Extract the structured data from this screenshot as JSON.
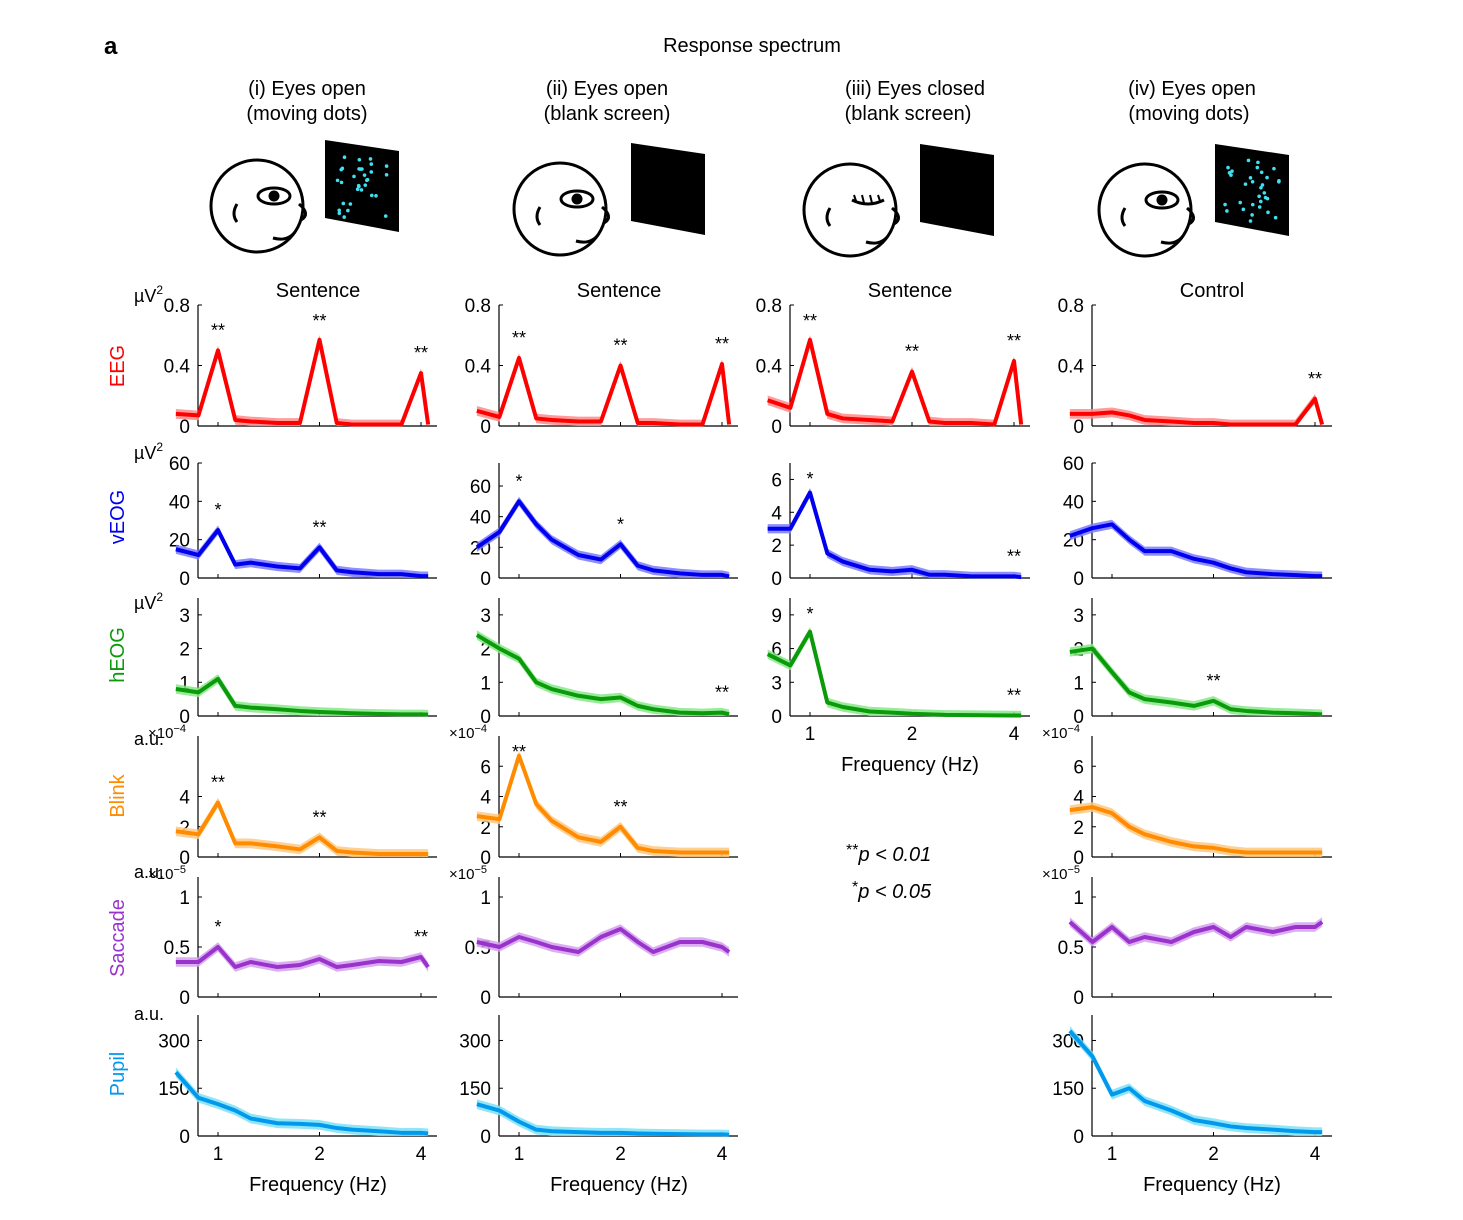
{
  "panel_label": "a",
  "title": "Response spectrum",
  "conditions": [
    {
      "line1": "(i) Eyes open",
      "line2": "(moving dots)",
      "display": "dots",
      "eyes": "open"
    },
    {
      "line1": "(ii) Eyes open",
      "line2": "(blank screen)",
      "display": "blank",
      "eyes": "open"
    },
    {
      "line1": "(iii) Eyes closed",
      "line2": "(blank screen)",
      "display": "blank",
      "eyes": "closed"
    },
    {
      "line1": "(iv) Eyes open",
      "line2": "(moving dots)",
      "display": "dots",
      "eyes": "open"
    }
  ],
  "column_titles": [
    "Sentence",
    "Sentence",
    "Sentence",
    "Control"
  ],
  "row_labels": [
    {
      "name": "EEG",
      "color": "#ff0000"
    },
    {
      "name": "vEOG",
      "color": "#0000ee"
    },
    {
      "name": "hEOG",
      "color": "#0a9a0a"
    },
    {
      "name": "Blink",
      "color": "#ff8c00"
    },
    {
      "name": "Saccade",
      "color": "#9933cc"
    },
    {
      "name": "Pupil",
      "color": "#0099ee"
    }
  ],
  "unit_labels": {
    "uv2": "µV",
    "sq": "2",
    "au": "a.u."
  },
  "xlabel": "Frequency (Hz)",
  "legend": {
    "line1_stars": "**",
    "line1_text": "p < 0.01",
    "line2_stars": "*",
    "line2_text": "p < 0.05"
  },
  "colors": {
    "EEG": {
      "line": "#ff0000",
      "band": "#ff8a8a"
    },
    "vEOG": {
      "line": "#0000ee",
      "band": "#7a7aff"
    },
    "hEOG": {
      "line": "#0a9a0a",
      "band": "#86e886"
    },
    "Blink": {
      "line": "#ff8c00",
      "band": "#ffc880"
    },
    "Saccade": {
      "line": "#9933cc",
      "band": "#d4a0ee"
    },
    "Pupil": {
      "line": "#0099ee",
      "band": "#7ce0f4"
    },
    "dots": "#40e0f0"
  },
  "chart_data": [
    {
      "type": "line",
      "row": "EEG",
      "col": 0,
      "ylim": [
        0,
        0.8
      ],
      "yticks": [
        "0",
        "0.4",
        "0.8"
      ],
      "unit": "uv2",
      "xticks": [
        1,
        2,
        4
      ],
      "x": [
        0.75,
        0.875,
        1,
        1.125,
        1.25,
        1.5,
        1.75,
        2,
        2.25,
        2.5,
        3,
        3.5,
        4,
        4.2
      ],
      "y": [
        0.08,
        0.07,
        0.5,
        0.04,
        0.03,
        0.02,
        0.02,
        0.57,
        0.02,
        0.01,
        0.01,
        0.01,
        0.35,
        0.01
      ],
      "stars": [
        {
          "x": 1,
          "s": "**"
        },
        {
          "x": 2,
          "s": "**"
        },
        {
          "x": 4,
          "s": "**"
        }
      ]
    },
    {
      "type": "line",
      "row": "EEG",
      "col": 1,
      "ylim": [
        0,
        0.8
      ],
      "yticks": [
        "0",
        "0.4",
        "0.8"
      ],
      "xticks": [
        1,
        2,
        4
      ],
      "x": [
        0.75,
        0.875,
        1,
        1.125,
        1.25,
        1.5,
        1.75,
        2,
        2.25,
        2.5,
        3,
        3.5,
        4,
        4.2
      ],
      "y": [
        0.1,
        0.06,
        0.45,
        0.05,
        0.04,
        0.03,
        0.03,
        0.4,
        0.02,
        0.02,
        0.01,
        0.01,
        0.41,
        0.01
      ],
      "stars": [
        {
          "x": 1,
          "s": "**"
        },
        {
          "x": 2,
          "s": "**"
        },
        {
          "x": 4,
          "s": "**"
        }
      ]
    },
    {
      "type": "line",
      "row": "EEG",
      "col": 2,
      "ylim": [
        0,
        0.8
      ],
      "yticks": [
        "0",
        "0.4",
        "0.8"
      ],
      "xticks": [
        1,
        2,
        4
      ],
      "x": [
        0.75,
        0.875,
        1,
        1.125,
        1.25,
        1.5,
        1.75,
        2,
        2.25,
        2.5,
        3,
        3.5,
        4,
        4.2
      ],
      "y": [
        0.17,
        0.12,
        0.57,
        0.08,
        0.05,
        0.04,
        0.03,
        0.36,
        0.03,
        0.02,
        0.02,
        0.01,
        0.43,
        0.01
      ],
      "stars": [
        {
          "x": 1,
          "s": "**"
        },
        {
          "x": 2,
          "s": "**"
        },
        {
          "x": 4,
          "s": "**"
        }
      ]
    },
    {
      "type": "line",
      "row": "EEG",
      "col": 3,
      "ylim": [
        0,
        0.8
      ],
      "yticks": [
        "0",
        "0.4",
        "0.8"
      ],
      "xticks": [
        1,
        2,
        4
      ],
      "x": [
        0.75,
        0.875,
        1,
        1.125,
        1.25,
        1.5,
        1.75,
        2,
        2.25,
        2.5,
        3,
        3.5,
        4,
        4.2
      ],
      "y": [
        0.08,
        0.08,
        0.09,
        0.07,
        0.04,
        0.03,
        0.02,
        0.02,
        0.01,
        0.01,
        0.01,
        0.01,
        0.18,
        0.01
      ],
      "stars": [
        {
          "x": 4,
          "s": "**"
        }
      ]
    },
    {
      "type": "line",
      "row": "vEOG",
      "col": 0,
      "ylim": [
        0,
        60
      ],
      "yticks": [
        "0",
        "20",
        "40",
        "60"
      ],
      "unit": "uv2",
      "xticks": [
        1,
        2,
        4
      ],
      "x": [
        0.75,
        0.875,
        1,
        1.125,
        1.25,
        1.5,
        1.75,
        2,
        2.25,
        2.5,
        3,
        3.5,
        4,
        4.2
      ],
      "y": [
        15,
        12,
        25,
        7,
        8,
        6,
        5,
        16,
        4,
        3,
        2,
        2,
        1,
        1
      ],
      "stars": [
        {
          "x": 1,
          "s": "*"
        },
        {
          "x": 2,
          "s": "**"
        }
      ]
    },
    {
      "type": "line",
      "row": "vEOG",
      "col": 1,
      "ylim": [
        0,
        75
      ],
      "yticks": [
        "0",
        "20",
        "40",
        "60"
      ],
      "xticks": [
        1,
        2,
        4
      ],
      "x": [
        0.75,
        0.875,
        1,
        1.125,
        1.25,
        1.5,
        1.75,
        2,
        2.25,
        2.5,
        3,
        3.5,
        4,
        4.2
      ],
      "y": [
        20,
        30,
        50,
        35,
        25,
        15,
        12,
        22,
        8,
        5,
        3,
        2,
        2,
        1
      ],
      "stars": [
        {
          "x": 1,
          "s": "*"
        },
        {
          "x": 2,
          "s": "*"
        }
      ]
    },
    {
      "type": "line",
      "row": "vEOG",
      "col": 2,
      "ylim": [
        0,
        7
      ],
      "yticks": [
        "0",
        "2",
        "4",
        "6"
      ],
      "xticks": [
        1,
        2,
        4
      ],
      "x": [
        0.75,
        0.875,
        1,
        1.125,
        1.25,
        1.5,
        1.75,
        2,
        2.25,
        2.5,
        3,
        3.5,
        4,
        4.2
      ],
      "y": [
        3,
        3,
        5.2,
        1.5,
        1,
        0.5,
        0.4,
        0.5,
        0.2,
        0.2,
        0.1,
        0.1,
        0.1,
        0.05
      ],
      "stars": [
        {
          "x": 1,
          "s": "*"
        },
        {
          "x": 4,
          "s": "**"
        }
      ]
    },
    {
      "type": "line",
      "row": "vEOG",
      "col": 3,
      "ylim": [
        0,
        60
      ],
      "yticks": [
        "0",
        "20",
        "40",
        "60"
      ],
      "xticks": [
        1,
        2,
        4
      ],
      "x": [
        0.75,
        0.875,
        1,
        1.125,
        1.25,
        1.5,
        1.75,
        2,
        2.25,
        2.5,
        3,
        3.5,
        4,
        4.2
      ],
      "y": [
        22,
        26,
        28,
        20,
        14,
        14,
        10,
        8,
        5,
        3,
        2,
        1.5,
        1,
        1
      ],
      "stars": []
    },
    {
      "type": "line",
      "row": "hEOG",
      "col": 0,
      "ylim": [
        0,
        3.5
      ],
      "yticks": [
        "0",
        "1",
        "2",
        "3"
      ],
      "unit": "uv2",
      "xticks": [
        1,
        2,
        4
      ],
      "x": [
        0.75,
        0.875,
        1,
        1.125,
        1.25,
        1.5,
        1.75,
        2,
        2.25,
        2.5,
        3,
        3.5,
        4,
        4.2
      ],
      "y": [
        0.8,
        0.7,
        1.1,
        0.3,
        0.25,
        0.2,
        0.15,
        0.12,
        0.1,
        0.08,
        0.06,
        0.05,
        0.05,
        0.04
      ],
      "stars": []
    },
    {
      "type": "line",
      "row": "hEOG",
      "col": 1,
      "ylim": [
        0,
        3.5
      ],
      "yticks": [
        "0",
        "1",
        "2",
        "3"
      ],
      "xticks": [
        1,
        2,
        4
      ],
      "x": [
        0.75,
        0.875,
        1,
        1.125,
        1.25,
        1.5,
        1.75,
        2,
        2.25,
        2.5,
        3,
        3.5,
        4,
        4.2
      ],
      "y": [
        2.4,
        2.0,
        1.7,
        1.0,
        0.8,
        0.6,
        0.5,
        0.55,
        0.3,
        0.2,
        0.1,
        0.08,
        0.1,
        0.05
      ],
      "stars": [
        {
          "x": 4,
          "s": "**"
        }
      ]
    },
    {
      "type": "line",
      "row": "hEOG",
      "col": 2,
      "ylim": [
        0,
        10.5
      ],
      "yticks": [
        "0",
        "3",
        "6",
        "9"
      ],
      "xticks": [
        1,
        2,
        4
      ],
      "x": [
        0.75,
        0.875,
        1,
        1.125,
        1.25,
        1.5,
        1.75,
        2,
        2.25,
        2.5,
        3,
        3.5,
        4,
        4.2
      ],
      "y": [
        5.5,
        4.5,
        7.5,
        1.2,
        0.8,
        0.4,
        0.3,
        0.2,
        0.15,
        0.1,
        0.08,
        0.06,
        0.05,
        0.04
      ],
      "stars": [
        {
          "x": 1,
          "s": "*"
        },
        {
          "x": 4,
          "s": "**"
        }
      ],
      "show_xticks": true
    },
    {
      "type": "line",
      "row": "hEOG",
      "col": 3,
      "ylim": [
        0,
        3.5
      ],
      "yticks": [
        "0",
        "1",
        "2",
        "3"
      ],
      "xticks": [
        1,
        2,
        4
      ],
      "x": [
        0.75,
        0.875,
        1,
        1.125,
        1.25,
        1.5,
        1.75,
        2,
        2.25,
        2.5,
        3,
        3.5,
        4,
        4.2
      ],
      "y": [
        1.9,
        2.0,
        1.3,
        0.7,
        0.5,
        0.4,
        0.3,
        0.45,
        0.2,
        0.15,
        0.1,
        0.08,
        0.06,
        0.05
      ],
      "stars": [
        {
          "x": 2,
          "s": "**"
        }
      ]
    },
    {
      "type": "line",
      "row": "Blink",
      "col": 0,
      "ylim": [
        0,
        8
      ],
      "yticks": [
        "0",
        "2",
        "4"
      ],
      "unit": "au",
      "exp": "×10",
      "exp_pow": "−4",
      "xticks": [
        1,
        2,
        4
      ],
      "x": [
        0.75,
        0.875,
        1,
        1.125,
        1.25,
        1.5,
        1.75,
        2,
        2.25,
        2.5,
        3,
        3.5,
        4,
        4.2
      ],
      "y": [
        1.7,
        1.5,
        3.6,
        0.9,
        0.9,
        0.7,
        0.5,
        1.3,
        0.4,
        0.3,
        0.2,
        0.2,
        0.2,
        0.2
      ],
      "stars": [
        {
          "x": 1,
          "s": "**"
        },
        {
          "x": 2,
          "s": "**"
        }
      ]
    },
    {
      "type": "line",
      "row": "Blink",
      "col": 1,
      "ylim": [
        0,
        8
      ],
      "yticks": [
        "0",
        "2",
        "4",
        "6"
      ],
      "exp": "×10",
      "exp_pow": "−4",
      "xticks": [
        1,
        2,
        4
      ],
      "x": [
        0.75,
        0.875,
        1,
        1.125,
        1.25,
        1.5,
        1.75,
        2,
        2.25,
        2.5,
        3,
        3.5,
        4,
        4.2
      ],
      "y": [
        2.7,
        2.5,
        6.7,
        3.5,
        2.4,
        1.3,
        1.0,
        2.0,
        0.6,
        0.4,
        0.3,
        0.3,
        0.3,
        0.3
      ],
      "stars": [
        {
          "x": 1,
          "s": "**"
        },
        {
          "x": 2,
          "s": "**"
        }
      ]
    },
    {
      "type": "line",
      "row": "Blink",
      "col": 3,
      "ylim": [
        0,
        8
      ],
      "yticks": [
        "0",
        "2",
        "4",
        "6"
      ],
      "exp": "×10",
      "exp_pow": "−4",
      "xticks": [
        1,
        2,
        4
      ],
      "x": [
        0.75,
        0.875,
        1,
        1.125,
        1.25,
        1.5,
        1.75,
        2,
        2.25,
        2.5,
        3,
        3.5,
        4,
        4.2
      ],
      "y": [
        3.1,
        3.3,
        2.9,
        2.0,
        1.5,
        1.0,
        0.7,
        0.6,
        0.4,
        0.3,
        0.3,
        0.3,
        0.3,
        0.3
      ],
      "stars": []
    },
    {
      "type": "line",
      "row": "Saccade",
      "col": 0,
      "ylim": [
        0,
        1.2
      ],
      "yticks": [
        "0",
        "0.5",
        "1"
      ],
      "unit": "au",
      "exp": "×10",
      "exp_pow": "−5",
      "xticks": [
        1,
        2,
        4
      ],
      "x": [
        0.75,
        0.875,
        1,
        1.125,
        1.25,
        1.5,
        1.75,
        2,
        2.25,
        2.5,
        3,
        3.5,
        4,
        4.2
      ],
      "y": [
        0.35,
        0.35,
        0.5,
        0.3,
        0.35,
        0.3,
        0.32,
        0.38,
        0.3,
        0.32,
        0.36,
        0.35,
        0.4,
        0.3
      ],
      "stars": [
        {
          "x": 1,
          "s": "*"
        },
        {
          "x": 4,
          "s": "**"
        }
      ]
    },
    {
      "type": "line",
      "row": "Saccade",
      "col": 1,
      "ylim": [
        0,
        1.2
      ],
      "yticks": [
        "0",
        "0.5",
        "1"
      ],
      "exp": "×10",
      "exp_pow": "−5",
      "xticks": [
        1,
        2,
        4
      ],
      "x": [
        0.75,
        0.875,
        1,
        1.125,
        1.25,
        1.5,
        1.75,
        2,
        2.25,
        2.5,
        3,
        3.5,
        4,
        4.2
      ],
      "y": [
        0.55,
        0.5,
        0.6,
        0.55,
        0.5,
        0.45,
        0.6,
        0.68,
        0.55,
        0.45,
        0.55,
        0.55,
        0.5,
        0.45
      ],
      "stars": []
    },
    {
      "type": "line",
      "row": "Saccade",
      "col": 3,
      "ylim": [
        0,
        1.2
      ],
      "yticks": [
        "0",
        "0.5",
        "1"
      ],
      "exp": "×10",
      "exp_pow": "−5",
      "xticks": [
        1,
        2,
        4
      ],
      "x": [
        0.75,
        0.875,
        1,
        1.125,
        1.25,
        1.5,
        1.75,
        2,
        2.25,
        2.5,
        3,
        3.5,
        4,
        4.2
      ],
      "y": [
        0.75,
        0.55,
        0.7,
        0.55,
        0.6,
        0.55,
        0.65,
        0.7,
        0.6,
        0.7,
        0.65,
        0.7,
        0.7,
        0.75
      ],
      "stars": []
    },
    {
      "type": "line",
      "row": "Pupil",
      "col": 0,
      "ylim": [
        0,
        380
      ],
      "yticks": [
        "0",
        "150",
        "300"
      ],
      "unit": "au",
      "xticks": [
        1,
        2,
        4
      ],
      "x": [
        0.75,
        0.875,
        1,
        1.125,
        1.25,
        1.5,
        1.75,
        2,
        2.25,
        2.5,
        3,
        3.5,
        4,
        4.2
      ],
      "y": [
        200,
        120,
        100,
        80,
        55,
        40,
        38,
        35,
        25,
        20,
        15,
        10,
        10,
        8
      ],
      "stars": [],
      "show_xticks": true
    },
    {
      "type": "line",
      "row": "Pupil",
      "col": 1,
      "ylim": [
        0,
        380
      ],
      "yticks": [
        "0",
        "150",
        "300"
      ],
      "xticks": [
        1,
        2,
        4
      ],
      "x": [
        0.75,
        0.875,
        1,
        1.125,
        1.25,
        1.5,
        1.75,
        2,
        2.25,
        2.5,
        3,
        3.5,
        4,
        4.2
      ],
      "y": [
        100,
        80,
        45,
        20,
        15,
        12,
        10,
        10,
        8,
        7,
        6,
        5,
        5,
        4
      ],
      "stars": [],
      "show_xticks": true
    },
    {
      "type": "line",
      "row": "Pupil",
      "col": 3,
      "ylim": [
        0,
        380
      ],
      "yticks": [
        "0",
        "150",
        "300"
      ],
      "xticks": [
        1,
        2,
        4
      ],
      "x": [
        0.75,
        0.875,
        1,
        1.125,
        1.25,
        1.5,
        1.75,
        2,
        2.25,
        2.5,
        3,
        3.5,
        4,
        4.2
      ],
      "y": [
        330,
        250,
        130,
        150,
        110,
        80,
        50,
        40,
        30,
        25,
        20,
        15,
        12,
        12
      ],
      "stars": [],
      "show_xticks": true
    }
  ]
}
